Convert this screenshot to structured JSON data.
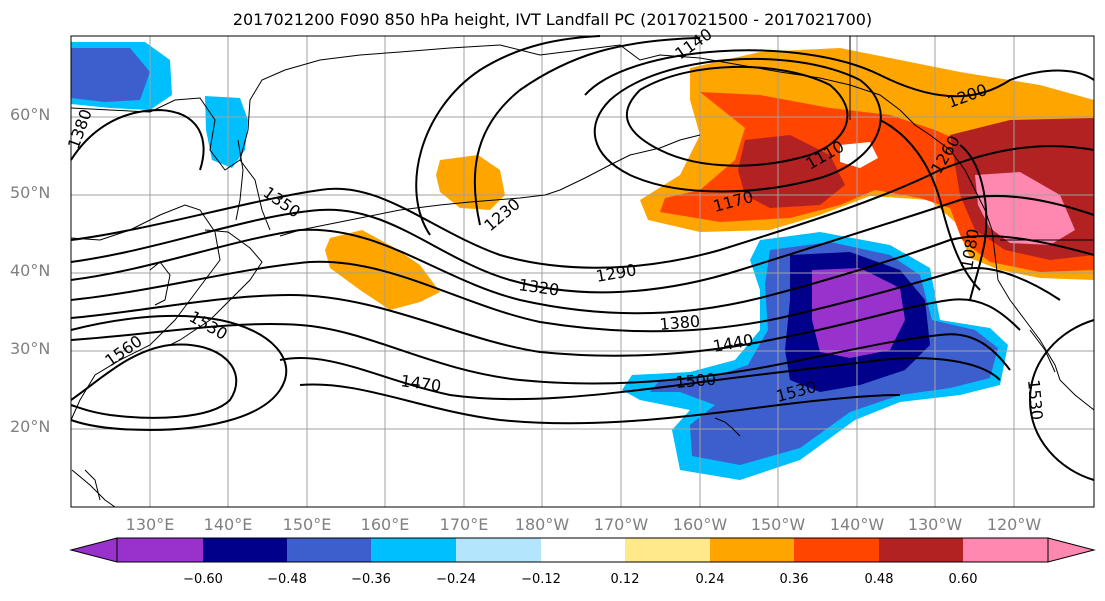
{
  "title": "2017021200 F090 850 hPa height, IVT Landfall PC (2017021500 - 2017021700)",
  "lat_labels": [
    "60°N",
    "50°N",
    "40°N",
    "30°N",
    "20°N"
  ],
  "lon_labels": [
    "130°E",
    "140°E",
    "150°E",
    "160°E",
    "170°E",
    "180°W",
    "170°W",
    "160°W",
    "150°W",
    "140°W",
    "130°W",
    "120°W"
  ],
  "contour_labels": [
    "1380",
    "1350",
    "1230",
    "1140",
    "1200",
    "1170",
    "1110",
    "1260",
    "1290",
    "1320",
    "1380",
    "1440",
    "1500",
    "1530",
    "1470",
    "1560",
    "1530",
    "1530",
    "1080"
  ],
  "colorbar": {
    "ticks": [
      "−0.60",
      "−0.48",
      "−0.36",
      "−0.24",
      "−0.12",
      "0.12",
      "0.24",
      "0.36",
      "0.48",
      "0.60"
    ],
    "colors": [
      "#9932cc",
      "#00008b",
      "#3c5fcd",
      "#00bfff",
      "#b3e5fc",
      "#ffffff",
      "#ffe98a",
      "#ffa500",
      "#ff4500",
      "#b22222",
      "#ff88b0"
    ]
  },
  "map_style": {
    "land_line": "#000000",
    "gridline": "#a0a0a0",
    "contour": "#000000"
  }
}
